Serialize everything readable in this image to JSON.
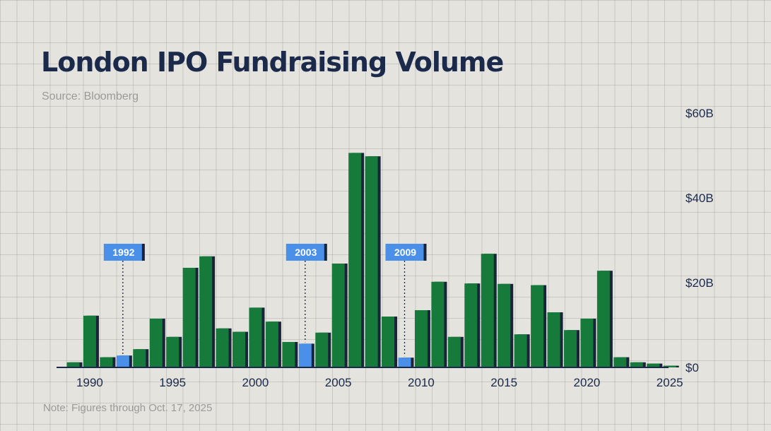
{
  "title": "London IPO Fundraising Volume",
  "source": "Source: Bloomberg",
  "note": "Note: Figures through Oct. 17, 2025",
  "colors": {
    "bar": "#167a3a",
    "bar_shadow": "#1a2438",
    "highlight": "#4a90e8",
    "text": "#1b2a4a"
  },
  "chart_data": {
    "type": "bar",
    "title": "London IPO Fundraising Volume",
    "xlabel": "",
    "ylabel": "",
    "ylim": [
      0,
      60
    ],
    "y_unit": "$B",
    "y_ticks": [
      "$0",
      "$20B",
      "$40B",
      "$60B"
    ],
    "y_tick_values": [
      0,
      20,
      40,
      60
    ],
    "x_ticks": [
      "1990",
      "1995",
      "2000",
      "2005",
      "2010",
      "2015",
      "2020",
      "2025"
    ],
    "x_tick_values": [
      1990,
      1995,
      2000,
      2005,
      2010,
      2015,
      2020,
      2025
    ],
    "highlighted": [
      "1992",
      "2003",
      "2009"
    ],
    "categories": [
      "1989",
      "1990",
      "1991",
      "1992",
      "1993",
      "1994",
      "1995",
      "1996",
      "1997",
      "1998",
      "1999",
      "2000",
      "2001",
      "2002",
      "2003",
      "2004",
      "2005",
      "2006",
      "2007",
      "2008",
      "2009",
      "2010",
      "2011",
      "2012",
      "2013",
      "2014",
      "2015",
      "2016",
      "2017",
      "2018",
      "2019",
      "2020",
      "2021",
      "2022",
      "2023",
      "2024",
      "2025"
    ],
    "values": [
      1.2,
      12.2,
      2.4,
      2.8,
      4.3,
      11.5,
      7.2,
      23.5,
      26.2,
      9.2,
      8.4,
      14.1,
      10.8,
      6.0,
      5.6,
      8.2,
      24.5,
      50.6,
      49.8,
      12.0,
      2.3,
      13.5,
      20.2,
      7.2,
      19.8,
      26.8,
      19.7,
      7.8,
      19.4,
      13.0,
      8.8,
      11.5,
      22.8,
      2.4,
      1.2,
      0.9,
      0.4
    ]
  }
}
